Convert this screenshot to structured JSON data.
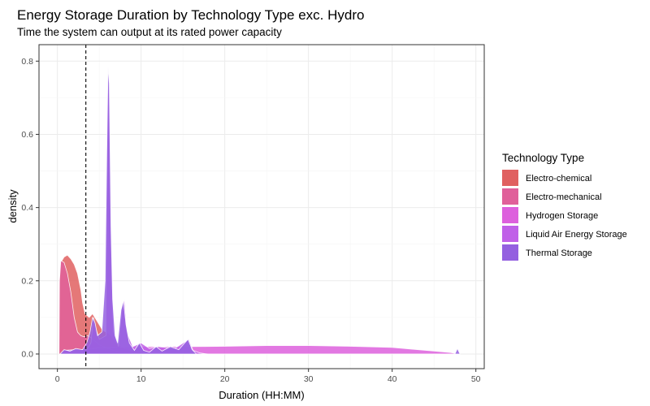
{
  "chart_data": {
    "type": "area",
    "title": "Energy Storage Duration by Technology Type exc. Hydro",
    "subtitle": "Time the system can output at its rated power capacity",
    "xlabel": "Duration (HH:MM)",
    "ylabel": "density",
    "xlim": [
      -2.2,
      51
    ],
    "ylim": [
      -0.04,
      0.845
    ],
    "x_ticks": [
      0,
      10,
      20,
      30,
      40,
      50
    ],
    "y_ticks": [
      0.0,
      0.2,
      0.4,
      0.6,
      0.8
    ],
    "y_tick_labels": [
      "0.0",
      "0.2",
      "0.4",
      "0.6",
      "0.8"
    ],
    "grid": true,
    "legend": {
      "title": "Technology Type",
      "placement": "right"
    },
    "reference_line": {
      "x": 3.4,
      "style": "dashed"
    },
    "series": [
      {
        "name": "Electro-chemical",
        "color": "#e06060",
        "points": [
          [
            0.2,
            0.0
          ],
          [
            0.25,
            0.2
          ],
          [
            0.4,
            0.25
          ],
          [
            0.8,
            0.265
          ],
          [
            1.2,
            0.27
          ],
          [
            1.6,
            0.26
          ],
          [
            2.0,
            0.245
          ],
          [
            2.4,
            0.22
          ],
          [
            2.8,
            0.175
          ],
          [
            3.0,
            0.14
          ],
          [
            3.3,
            0.11
          ],
          [
            3.8,
            0.1
          ],
          [
            4.2,
            0.11
          ],
          [
            4.6,
            0.095
          ],
          [
            5.0,
            0.08
          ],
          [
            5.4,
            0.065
          ],
          [
            5.8,
            0.06
          ],
          [
            6.2,
            0.055
          ],
          [
            6.6,
            0.045
          ],
          [
            7.0,
            0.03
          ],
          [
            8.0,
            0.015
          ],
          [
            9.0,
            0.008
          ],
          [
            10.5,
            0.003
          ],
          [
            12.0,
            0.0
          ]
        ]
      },
      {
        "name": "Electro-mechanical",
        "color": "#e0609a",
        "points": [
          [
            0.2,
            0.0
          ],
          [
            0.25,
            0.2
          ],
          [
            0.4,
            0.255
          ],
          [
            0.8,
            0.25
          ],
          [
            1.2,
            0.22
          ],
          [
            1.6,
            0.17
          ],
          [
            2.0,
            0.1
          ],
          [
            2.4,
            0.06
          ],
          [
            2.8,
            0.05
          ],
          [
            3.2,
            0.047
          ],
          [
            3.6,
            0.05
          ],
          [
            4.0,
            0.045
          ],
          [
            4.5,
            0.035
          ],
          [
            5.0,
            0.025
          ],
          [
            6.0,
            0.015
          ],
          [
            7.0,
            0.008
          ],
          [
            8.5,
            0.003
          ],
          [
            10.0,
            0.0
          ]
        ]
      },
      {
        "name": "Hydrogen Storage",
        "color": "#dd60dd",
        "points": [
          [
            0.5,
            0.0
          ],
          [
            2,
            0.01
          ],
          [
            5,
            0.017
          ],
          [
            10,
            0.02
          ],
          [
            15,
            0.02
          ],
          [
            20,
            0.021
          ],
          [
            25,
            0.023
          ],
          [
            30,
            0.023
          ],
          [
            35,
            0.021
          ],
          [
            40,
            0.018
          ],
          [
            43,
            0.012
          ],
          [
            45,
            0.008
          ],
          [
            47,
            0.004
          ],
          [
            48,
            0.0
          ]
        ]
      },
      {
        "name": "Liquid Air Energy Storage",
        "color": "#c060e8",
        "points": [
          [
            0.3,
            0.0
          ],
          [
            0.8,
            0.01
          ],
          [
            2,
            0.012
          ],
          [
            3.5,
            0.012
          ],
          [
            4.0,
            0.03
          ],
          [
            4.3,
            0.1
          ],
          [
            4.6,
            0.07
          ],
          [
            5.0,
            0.04
          ],
          [
            5.8,
            0.05
          ],
          [
            6.0,
            0.78
          ],
          [
            6.2,
            0.7
          ],
          [
            6.4,
            0.3
          ],
          [
            6.7,
            0.06
          ],
          [
            7.3,
            0.02
          ],
          [
            7.7,
            0.12
          ],
          [
            8.0,
            0.15
          ],
          [
            8.3,
            0.06
          ],
          [
            9.0,
            0.02
          ],
          [
            10.0,
            0.03
          ],
          [
            11.0,
            0.015
          ],
          [
            12.0,
            0.02
          ],
          [
            14.0,
            0.015
          ],
          [
            15.7,
            0.04
          ],
          [
            16.2,
            0.01
          ],
          [
            17,
            0.003
          ],
          [
            18,
            0.0
          ]
        ]
      },
      {
        "name": "Thermal Storage",
        "color": "#9460e0",
        "points": [
          [
            0.3,
            0.0
          ],
          [
            0.8,
            0.012
          ],
          [
            1.5,
            0.008
          ],
          [
            2.2,
            0.015
          ],
          [
            3.0,
            0.012
          ],
          [
            3.5,
            0.03
          ],
          [
            3.9,
            0.06
          ],
          [
            4.2,
            0.1
          ],
          [
            4.5,
            0.085
          ],
          [
            4.8,
            0.05
          ],
          [
            5.3,
            0.06
          ],
          [
            5.7,
            0.2
          ],
          [
            5.9,
            0.55
          ],
          [
            6.05,
            0.785
          ],
          [
            6.2,
            0.74
          ],
          [
            6.4,
            0.35
          ],
          [
            6.6,
            0.15
          ],
          [
            6.9,
            0.05
          ],
          [
            7.2,
            0.03
          ],
          [
            7.6,
            0.12
          ],
          [
            7.9,
            0.145
          ],
          [
            8.2,
            0.08
          ],
          [
            8.6,
            0.03
          ],
          [
            9.2,
            0.01
          ],
          [
            9.8,
            0.03
          ],
          [
            10.3,
            0.01
          ],
          [
            11,
            0.005
          ],
          [
            11.8,
            0.02
          ],
          [
            12.5,
            0.008
          ],
          [
            13.5,
            0.02
          ],
          [
            14.5,
            0.012
          ],
          [
            15.6,
            0.04
          ],
          [
            16.1,
            0.012
          ],
          [
            16.6,
            0.0
          ],
          [
            47.5,
            0.0
          ],
          [
            47.8,
            0.015
          ],
          [
            48.1,
            0.0
          ]
        ]
      }
    ]
  }
}
